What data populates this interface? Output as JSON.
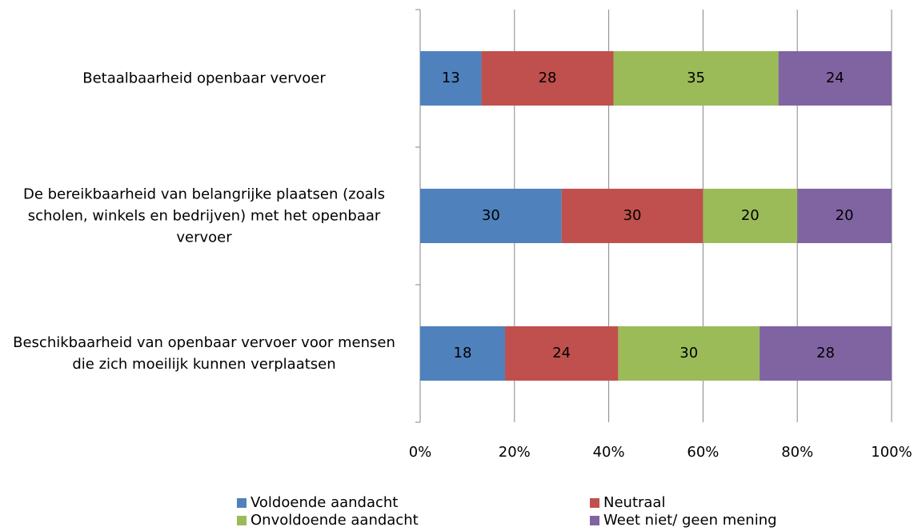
{
  "chart_data": {
    "type": "stacked_barh",
    "categories": [
      "Betaalbaarheid openbaar vervoer",
      "De bereikbaarheid van belangrijke plaatsen (zoals scholen, winkels en bedrijven) met het openbaar vervoer",
      "Beschikbaarheid van openbaar vervoer voor mensen die zich moeilijk kunnen verplaatsen"
    ],
    "series": [
      {
        "name": "Voldoende aandacht",
        "color": "#4f81bd",
        "values": [
          13,
          30,
          18
        ]
      },
      {
        "name": "Neutraal",
        "color": "#c0504d",
        "values": [
          28,
          30,
          24
        ]
      },
      {
        "name": "Onvoldoende aandacht",
        "color": "#9bbb59",
        "values": [
          35,
          20,
          30
        ]
      },
      {
        "name": "Weet niet/ geen mening",
        "color": "#8064a2",
        "values": [
          24,
          20,
          28
        ]
      }
    ],
    "xlim": [
      0,
      100
    ],
    "xticks": [
      {
        "value": 0,
        "label": "0%"
      },
      {
        "value": 20,
        "label": "20%"
      },
      {
        "value": 40,
        "label": "40%"
      },
      {
        "value": 60,
        "label": "60%"
      },
      {
        "value": 80,
        "label": "80%"
      },
      {
        "value": 100,
        "label": "100%"
      }
    ],
    "grid": true,
    "legend": "bottom"
  }
}
